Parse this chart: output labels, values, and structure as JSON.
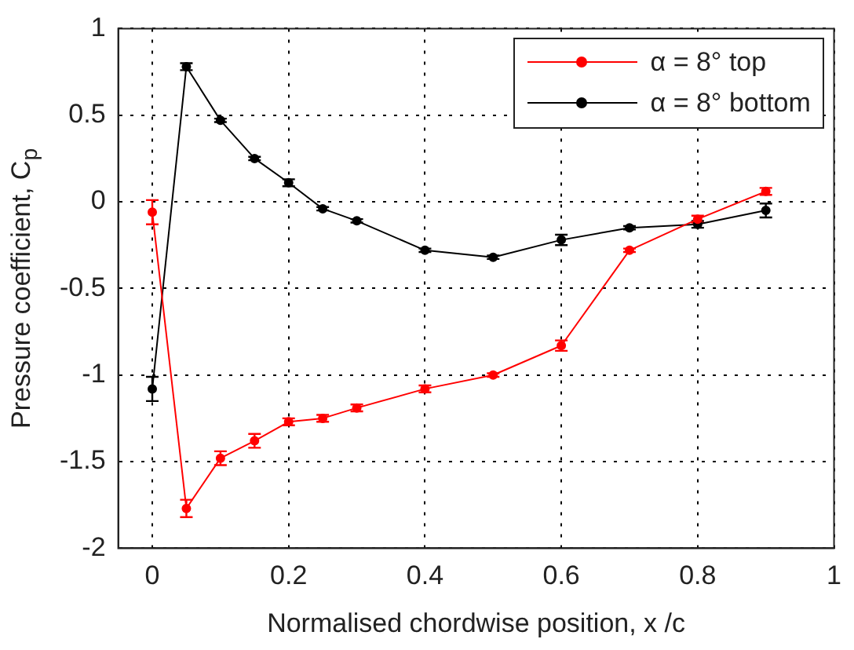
{
  "chart_data": {
    "type": "line",
    "xlabel": "Normalised chordwise position, x /c",
    "ylabel": "Pressure coefficient, C$_{p}$",
    "x": [
      0,
      0.05,
      0.1,
      0.15,
      0.2,
      0.25,
      0.3,
      0.4,
      0.5,
      0.6,
      0.7,
      0.8,
      0.9
    ],
    "series": [
      {
        "name": "α = 8° top",
        "color": "#ff0000",
        "values": [
          -0.06,
          -1.77,
          -1.48,
          -1.38,
          -1.27,
          -1.25,
          -1.19,
          -1.08,
          -1.0,
          -0.83,
          -0.28,
          -0.1,
          0.06
        ],
        "errors": [
          0.07,
          0.05,
          0.04,
          0.04,
          0.02,
          0.02,
          0.02,
          0.02,
          0.01,
          0.03,
          0.01,
          0.02,
          0.02
        ]
      },
      {
        "name": "α = 8° bottom",
        "color": "#000000",
        "values": [
          -1.08,
          0.78,
          0.47,
          0.25,
          0.11,
          -0.04,
          -0.11,
          -0.28,
          -0.32,
          -0.22,
          -0.15,
          -0.13,
          -0.05
        ],
        "errors": [
          0.07,
          0.02,
          0.01,
          0.01,
          0.02,
          0.01,
          0.01,
          0.01,
          0.01,
          0.03,
          0.01,
          0.02,
          0.04
        ]
      }
    ],
    "xlim": [
      -0.05,
      1
    ],
    "xticks": [
      0,
      0.2,
      0.4,
      0.6,
      0.8,
      1
    ],
    "ylim": [
      -2,
      1
    ],
    "yticks": [
      -2,
      -1.5,
      -1,
      -0.5,
      0,
      0.5,
      1
    ],
    "grid": true,
    "legend": "top right",
    "marker": "circle",
    "line_style": "solid"
  }
}
